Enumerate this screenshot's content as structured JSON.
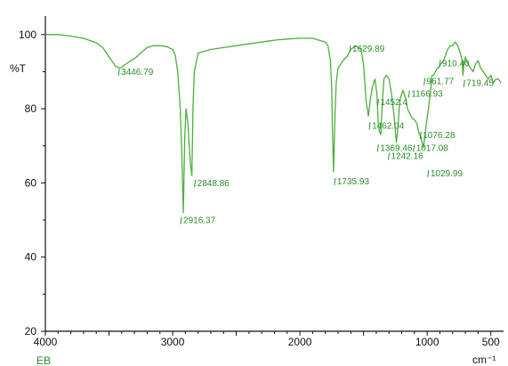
{
  "chart_data": {
    "type": "line",
    "ylabel": "%T",
    "xlabel": "cm⁻¹",
    "sample_label": "EB",
    "x_reversed": true,
    "xlim": [
      4000,
      400
    ],
    "ylim": [
      20,
      105
    ],
    "x_ticks": [
      4000,
      3000,
      2000,
      1000,
      500
    ],
    "y_ticks": [
      20,
      40,
      60,
      80,
      100
    ],
    "colors": {
      "spectrum": "#4caf3c",
      "peak_label": "#2a8f2a",
      "axis": "#111111"
    },
    "series": [
      {
        "x": [
          4000,
          3900,
          3800,
          3700,
          3600,
          3550,
          3500,
          3450,
          3420,
          3400,
          3350,
          3300,
          3250,
          3200,
          3150,
          3100,
          3050,
          3000,
          2980,
          2960,
          2940,
          2930,
          2916,
          2905,
          2895,
          2880,
          2870,
          2860,
          2849,
          2840,
          2830,
          2800,
          2700,
          2600,
          2500,
          2400,
          2300,
          2200,
          2100,
          2000,
          1950,
          1900,
          1850,
          1800,
          1780,
          1760,
          1750,
          1745,
          1736,
          1725,
          1715,
          1700,
          1680,
          1650,
          1630,
          1600,
          1560,
          1520,
          1500,
          1480,
          1470,
          1462,
          1455,
          1445,
          1430,
          1410,
          1395,
          1385,
          1375,
          1365,
          1355,
          1340,
          1320,
          1300,
          1280,
          1260,
          1250,
          1242,
          1235,
          1228,
          1220,
          1210,
          1200,
          1190,
          1180,
          1167,
          1155,
          1140,
          1120,
          1100,
          1080,
          1070,
          1060,
          1050,
          1040,
          1030,
          1020,
          1010,
          990,
          970,
          962,
          950,
          935,
          920,
          910,
          895,
          880,
          860,
          840,
          820,
          800,
          780,
          760,
          740,
          725,
          719,
          712,
          700,
          680,
          660,
          640,
          620,
          600,
          580,
          560,
          540,
          520,
          500,
          480,
          460,
          440,
          420
        ],
        "y": [
          100,
          100,
          99.6,
          99,
          97.8,
          96.5,
          94,
          91.5,
          91,
          91.2,
          92.5,
          93.5,
          95,
          96.5,
          97,
          97,
          96.8,
          96,
          94.5,
          90,
          80,
          70,
          52,
          72,
          80,
          76,
          70,
          65,
          62,
          80,
          90,
          95,
          96,
          96.5,
          97,
          97.5,
          98,
          98.5,
          98.8,
          99,
          99,
          99,
          98.5,
          98,
          97,
          93,
          85,
          75,
          63,
          78,
          87,
          91,
          92,
          93.5,
          94,
          96,
          97,
          96,
          92,
          82,
          80,
          78,
          80,
          83,
          86,
          88,
          84,
          76,
          74,
          73,
          80,
          88,
          89,
          88,
          84,
          78,
          74,
          71,
          73,
          76,
          80,
          83,
          84,
          85,
          84,
          82.5,
          80,
          79,
          77.5,
          77,
          76,
          74,
          73,
          72.5,
          71,
          69.5,
          72,
          75,
          80,
          86,
          89,
          89,
          90,
          91,
          91,
          92,
          92.5,
          94,
          96,
          97,
          97,
          98,
          97,
          95,
          93,
          89,
          92,
          94,
          92,
          91,
          90,
          92,
          93,
          91,
          90,
          89,
          88,
          89,
          87,
          88,
          88,
          87
        ]
      }
    ],
    "annotations": [
      {
        "text": "3446.79",
        "x": 3446.79,
        "y": 91.5
      },
      {
        "text": "2916.37",
        "x": 2916.37,
        "y": 52
      },
      {
        "text": "2848.86",
        "x": 2848.86,
        "y": 62
      },
      {
        "text": "1735.93",
        "x": 1735.93,
        "y": 63
      },
      {
        "text": "1629.89",
        "x": 1629.89,
        "y": 94
      },
      {
        "text": "1462.04",
        "x": 1462.04,
        "y": 78
      },
      {
        "text": "1452.4",
        "x": 1452.4,
        "y": 80
      },
      {
        "text": "1369.46",
        "x": 1369.46,
        "y": 73
      },
      {
        "text": "1242.16",
        "x": 1242.16,
        "y": 71
      },
      {
        "text": "1166.93",
        "x": 1166.93,
        "y": 82.5
      },
      {
        "text": "1076.28",
        "x": 1076.28,
        "y": 74
      },
      {
        "text": "1017.08",
        "x": 1017.08,
        "y": 72
      },
      {
        "text": "1029.99",
        "x": 1029.99,
        "y": 69.5
      },
      {
        "text": "961.77",
        "x": 961.77,
        "y": 89
      },
      {
        "text": "910.40",
        "x": 910.4,
        "y": 91
      },
      {
        "text": "719.45",
        "x": 719.45,
        "y": 89
      }
    ]
  }
}
